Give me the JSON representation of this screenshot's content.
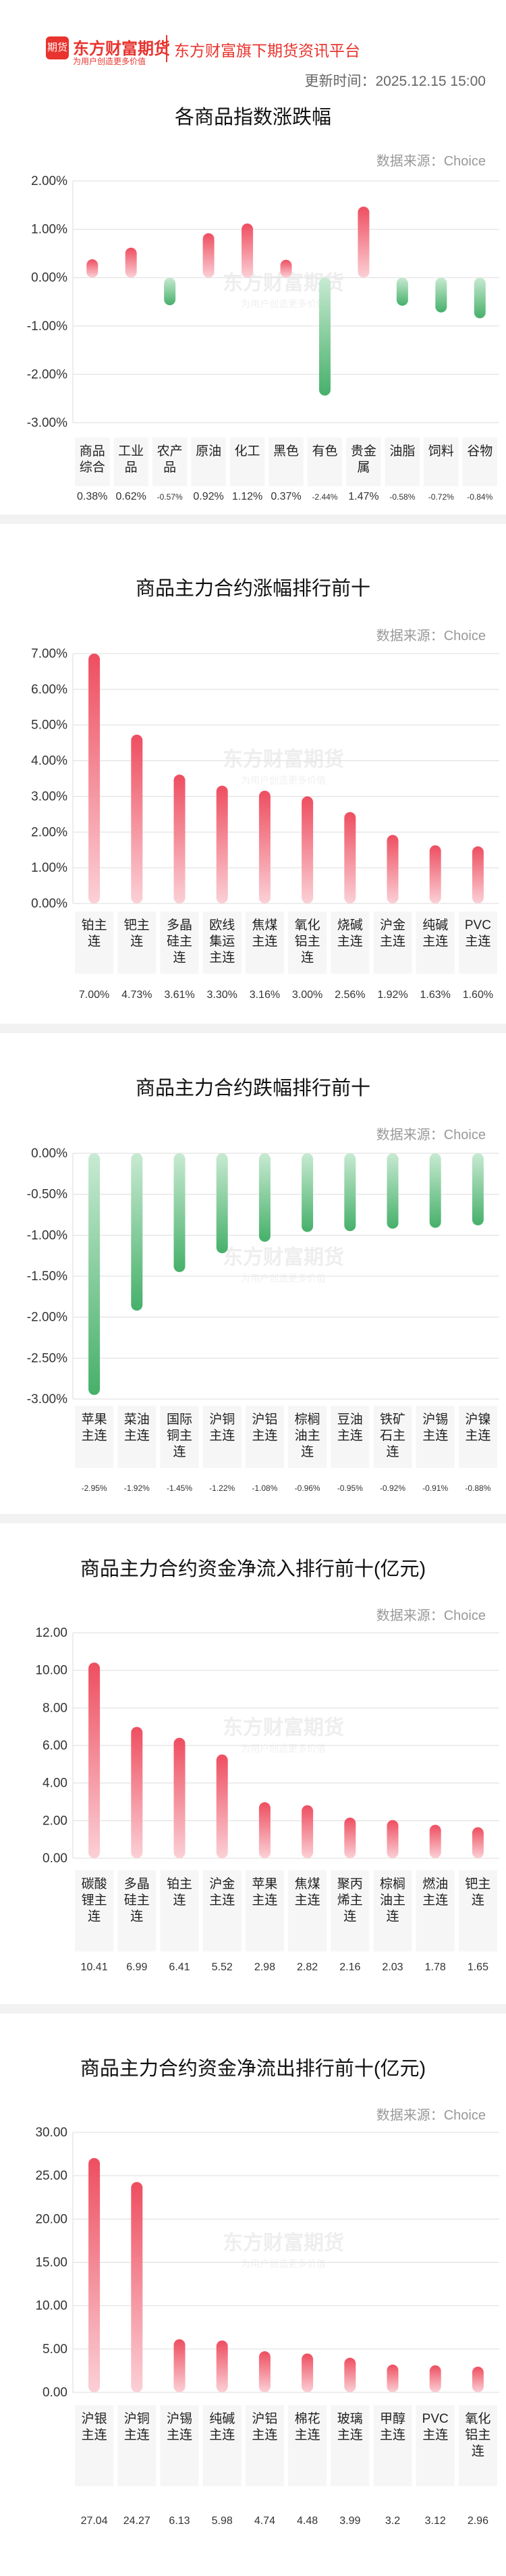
{
  "header": {
    "logo_badge": "期货",
    "logo_name": "东方财富期货",
    "logo_slogan": "为用户创造更多价值",
    "platform": "东方财富旗下期货资讯平台",
    "update_time": "更新时间：2025.12.15 15:00"
  },
  "watermark": {
    "line1": "东方财富期货",
    "line2": "为用户创造更多价值"
  },
  "colors": {
    "up": "#ee4e60",
    "down": "#46b06a",
    "divider": "#f2f2f2",
    "grid": "#dddddd"
  },
  "chart_data": [
    {
      "type": "bar",
      "title": "各商品指数涨跌幅",
      "source": "数据来源：Choice",
      "unit": "%",
      "categories": [
        "商品\n综合",
        "工业\n品",
        "农产\n品",
        "原油",
        "化工",
        "黑色",
        "有色",
        "贵金\n属",
        "油脂",
        "饲料",
        "谷物"
      ],
      "values": [
        0.38,
        0.62,
        -0.57,
        0.92,
        1.12,
        0.37,
        -2.44,
        1.47,
        -0.58,
        -0.72,
        -0.84
      ],
      "value_labels": [
        "0.38%",
        "0.62%",
        "-0.57%",
        "0.92%",
        "1.12%",
        "0.37%",
        "-2.44%",
        "1.47%",
        "-0.58%",
        "-0.72%",
        "-0.84%"
      ],
      "y_ticks": [
        "2.00%",
        "1.00%",
        "0.00%",
        "-1.00%",
        "-2.00%",
        "-3.00%"
      ],
      "ylim": [
        -3,
        2
      ],
      "grid": true
    },
    {
      "type": "bar",
      "title": "商品主力合约涨幅排行前十",
      "source": "数据来源：Choice",
      "unit": "%",
      "categories": [
        "铂主\n连",
        "钯主\n连",
        "多晶\n硅主\n连",
        "欧线\n集运\n主连",
        "焦煤\n主连",
        "氧化\n铝主\n连",
        "烧碱\n主连",
        "沪金\n主连",
        "纯碱\n主连",
        "PVC\n主连"
      ],
      "values": [
        7.0,
        4.73,
        3.61,
        3.3,
        3.16,
        3.0,
        2.56,
        1.92,
        1.63,
        1.6
      ],
      "value_labels": [
        "7.00%",
        "4.73%",
        "3.61%",
        "3.30%",
        "3.16%",
        "3.00%",
        "2.56%",
        "1.92%",
        "1.63%",
        "1.60%"
      ],
      "y_ticks": [
        "7.00%",
        "6.00%",
        "5.00%",
        "4.00%",
        "3.00%",
        "2.00%",
        "1.00%",
        "0.00%"
      ],
      "ylim": [
        0,
        7
      ],
      "grid": true
    },
    {
      "type": "bar",
      "title": "商品主力合约跌幅排行前十",
      "source": "数据来源：Choice",
      "unit": "%",
      "categories": [
        "苹果\n主连",
        "菜油\n主连",
        "国际\n铜主\n连",
        "沪铜\n主连",
        "沪铝\n主连",
        "棕榈\n油主\n连",
        "豆油\n主连",
        "铁矿\n石主\n连",
        "沪锡\n主连",
        "沪镍\n主连"
      ],
      "values": [
        -2.95,
        -1.92,
        -1.45,
        -1.22,
        -1.08,
        -0.96,
        -0.95,
        -0.92,
        -0.91,
        -0.88
      ],
      "value_labels": [
        "-2.95%",
        "-1.92%",
        "-1.45%",
        "-1.22%",
        "-1.08%",
        "-0.96%",
        "-0.95%",
        "-0.92%",
        "-0.91%",
        "-0.88%"
      ],
      "y_ticks": [
        "0.00%",
        "-0.50%",
        "-1.00%",
        "-1.50%",
        "-2.00%",
        "-2.50%",
        "-3.00%"
      ],
      "ylim": [
        -3,
        0
      ],
      "grid": true
    },
    {
      "type": "bar",
      "title": "商品主力合约资金净流入排行前十(亿元)",
      "source": "数据来源：Choice",
      "unit": "亿元",
      "categories": [
        "碳酸\n锂主\n连",
        "多晶\n硅主\n连",
        "铂主\n连",
        "沪金\n主连",
        "苹果\n主连",
        "焦煤\n主连",
        "聚丙\n烯主\n连",
        "棕榈\n油主\n连",
        "燃油\n主连",
        "钯主\n连"
      ],
      "values": [
        10.41,
        6.99,
        6.41,
        5.52,
        2.98,
        2.82,
        2.16,
        2.03,
        1.78,
        1.65
      ],
      "value_labels": [
        "10.41",
        "6.99",
        "6.41",
        "5.52",
        "2.98",
        "2.82",
        "2.16",
        "2.03",
        "1.78",
        "1.65"
      ],
      "y_ticks": [
        "12.00",
        "10.00",
        "8.00",
        "6.00",
        "4.00",
        "2.00",
        "0.00"
      ],
      "ylim": [
        0,
        12
      ],
      "grid": true
    },
    {
      "type": "bar",
      "title": "商品主力合约资金净流出排行前十(亿元)",
      "source": "数据来源：Choice",
      "unit": "亿元",
      "categories": [
        "沪银\n主连",
        "沪铜\n主连",
        "沪锡\n主连",
        "纯碱\n主连",
        "沪铝\n主连",
        "棉花\n主连",
        "玻璃\n主连",
        "甲醇\n主连",
        "PVC\n主连",
        "氧化\n铝主\n连"
      ],
      "values": [
        27.04,
        24.27,
        6.13,
        5.98,
        4.74,
        4.48,
        3.99,
        3.2,
        3.12,
        2.96
      ],
      "value_labels": [
        "27.04",
        "24.27",
        "6.13",
        "5.98",
        "4.74",
        "4.48",
        "3.99",
        "3.2",
        "3.12",
        "2.96"
      ],
      "y_ticks": [
        "30.00",
        "25.00",
        "20.00",
        "15.00",
        "10.00",
        "5.00",
        "0.00"
      ],
      "ylim": [
        0,
        30
      ],
      "grid": true
    }
  ]
}
